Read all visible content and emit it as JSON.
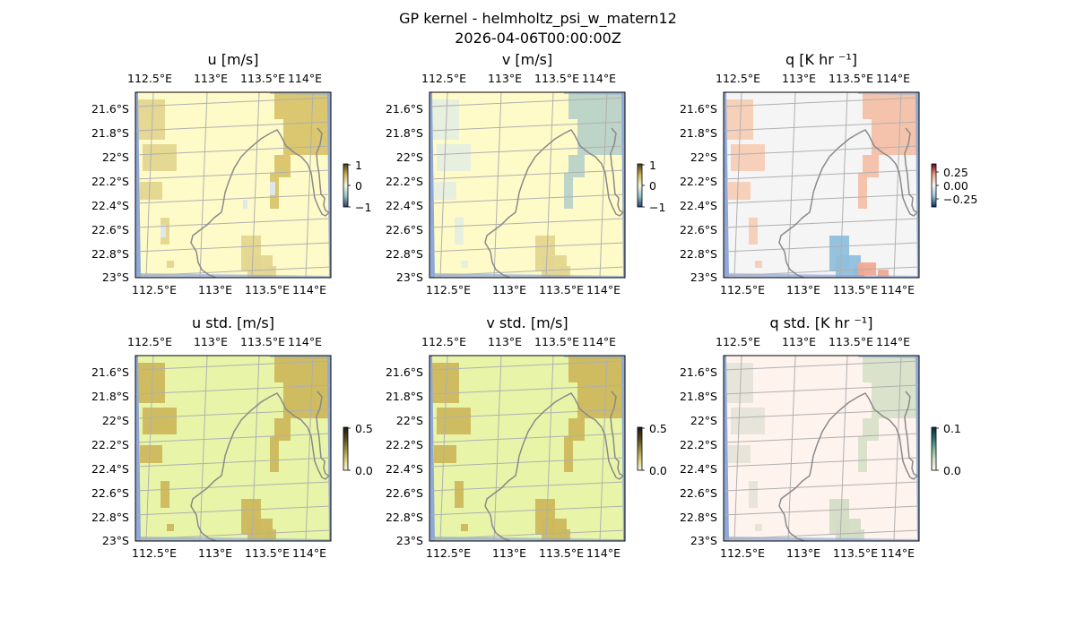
{
  "figure": {
    "title_line1": "GP kernel - helmholtz_psi_w_matern12",
    "title_line2": "2026-04-06T00:00:00Z"
  },
  "colors": {
    "coastline": "#8a8a8a",
    "ocean_edge": "#8fa8d8",
    "gridline": "#b0b0b0"
  },
  "chart_data": [
    {
      "type": "heatmap",
      "title": "u [m/s]",
      "x_ticks": [
        "112.5°E",
        "113°E",
        "113.5°E",
        "114°E"
      ],
      "y_ticks": [
        "21.6°S",
        "21.8°S",
        "22°S",
        "22.2°S",
        "22.4°S",
        "22.6°S",
        "22.8°S",
        "23°S"
      ],
      "colorbar": {
        "ticks": [
          "1",
          "0",
          "−1"
        ],
        "range": [
          -1,
          1
        ]
      },
      "background_color": "#fffbc8",
      "blobs": [
        {
          "region": "west",
          "color": "#e4d690"
        },
        {
          "region": "northeast",
          "color": "#d8c46a"
        },
        {
          "region": "south-central",
          "color": "#e4d690"
        },
        {
          "region": "central-specks",
          "color": "#dde8ee"
        }
      ]
    },
    {
      "type": "heatmap",
      "title": "v [m/s]",
      "x_ticks": [
        "112.5°E",
        "113°E",
        "113.5°E",
        "114°E"
      ],
      "y_ticks": [
        "21.6°S",
        "21.8°S",
        "22°S",
        "22.2°S",
        "22.4°S",
        "22.6°S",
        "22.8°S",
        "23°S"
      ],
      "colorbar": {
        "ticks": [
          "1",
          "0",
          "−1"
        ],
        "range": [
          -1,
          1
        ]
      },
      "background_color": "#fffbc8",
      "blobs": [
        {
          "region": "northeast",
          "color": "#b9d2c8"
        },
        {
          "region": "west",
          "color": "#e6eee0"
        },
        {
          "region": "south-central",
          "color": "#e4d690"
        }
      ]
    },
    {
      "type": "heatmap",
      "title": "q [K hr ⁻¹]",
      "x_ticks": [
        "112.5°E",
        "113°E",
        "113.5°E",
        "114°E"
      ],
      "y_ticks": [
        "21.6°S",
        "21.8°S",
        "22°S",
        "22.2°S",
        "22.4°S",
        "22.6°S",
        "22.8°S",
        "23°S"
      ],
      "colorbar": {
        "ticks": [
          "0.25",
          "0.00",
          "−0.25"
        ],
        "range": [
          -0.35,
          0.35
        ]
      },
      "background_color": "#f5f5f5",
      "blobs": [
        {
          "region": "northeast",
          "color": "#f4c0a8"
        },
        {
          "region": "west",
          "color": "#f7cdb6"
        },
        {
          "region": "south-central",
          "color": "#8fbfdc"
        },
        {
          "region": "south-east",
          "color": "#f2a890"
        }
      ]
    },
    {
      "type": "heatmap",
      "title": "u std. [m/s]",
      "x_ticks": [
        "112.5°E",
        "113°E",
        "113.5°E",
        "114°E"
      ],
      "y_ticks": [
        "21.6°S",
        "21.8°S",
        "22°S",
        "22.2°S",
        "22.4°S",
        "22.6°S",
        "22.8°S",
        "23°S"
      ],
      "colorbar": {
        "ticks": [
          "0.5",
          "0.0"
        ],
        "range": [
          0,
          0.5
        ]
      },
      "background_color": "#e8f5a8",
      "blobs": [
        {
          "region": "west",
          "color": "#cdb85c"
        },
        {
          "region": "northeast",
          "color": "#cdb85c"
        },
        {
          "region": "south-central",
          "color": "#cdb85c"
        }
      ]
    },
    {
      "type": "heatmap",
      "title": "v std. [m/s]",
      "x_ticks": [
        "112.5°E",
        "113°E",
        "113.5°E",
        "114°E"
      ],
      "y_ticks": [
        "21.6°S",
        "21.8°S",
        "22°S",
        "22.2°S",
        "22.4°S",
        "22.6°S",
        "22.8°S",
        "23°S"
      ],
      "colorbar": {
        "ticks": [
          "0.5",
          "0.0"
        ],
        "range": [
          0,
          0.5
        ]
      },
      "background_color": "#e8f5a8",
      "blobs": [
        {
          "region": "west",
          "color": "#cdb85c"
        },
        {
          "region": "northeast",
          "color": "#cdb85c"
        },
        {
          "region": "south-central",
          "color": "#cdb85c"
        }
      ]
    },
    {
      "type": "heatmap",
      "title": "q std. [K hr ⁻¹]",
      "x_ticks": [
        "112.5°E",
        "113°E",
        "113.5°E",
        "114°E"
      ],
      "y_ticks": [
        "21.6°S",
        "21.8°S",
        "22°S",
        "22.2°S",
        "22.4°S",
        "22.6°S",
        "22.8°S",
        "23°S"
      ],
      "colorbar": {
        "ticks": [
          "0.1",
          "0.0"
        ],
        "range": [
          0,
          0.1
        ]
      },
      "background_color": "#fff3ee",
      "blobs": [
        {
          "region": "northeast",
          "color": "#d8e0c8"
        },
        {
          "region": "west",
          "color": "#e6e4d8"
        },
        {
          "region": "south-central",
          "color": "#d4dcc4"
        }
      ]
    }
  ]
}
